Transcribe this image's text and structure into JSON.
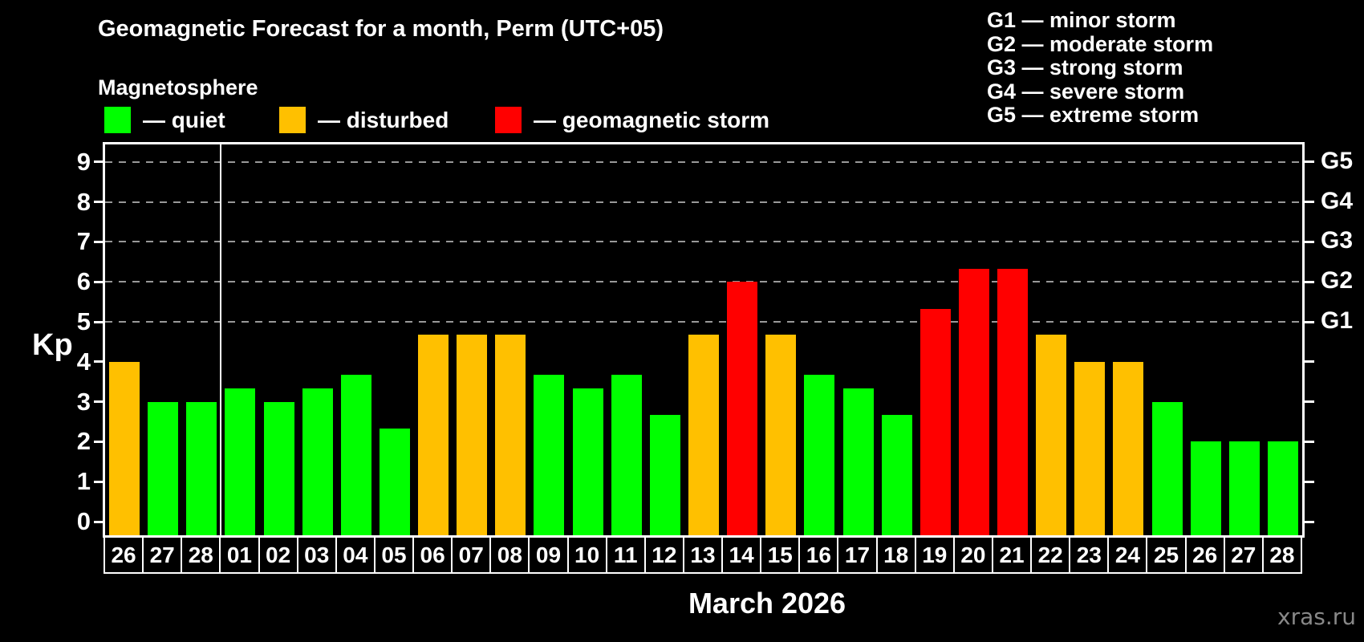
{
  "header": {
    "title": "Geomagnetic Forecast for a month, Perm (UTC+05)",
    "subtitle": "Magnetosphere"
  },
  "legend": {
    "items": [
      {
        "key": "quiet",
        "label": "— quiet",
        "color": "#00ff00"
      },
      {
        "key": "disturbed",
        "label": "— disturbed",
        "color": "#ffc000"
      },
      {
        "key": "storm",
        "label": "— geomagnetic storm",
        "color": "#ff0000"
      }
    ]
  },
  "storm_scale_legend": {
    "items": [
      {
        "label": "G1 — minor storm"
      },
      {
        "label": "G2 — moderate storm"
      },
      {
        "label": "G3 — strong storm"
      },
      {
        "label": "G4 — severe storm"
      },
      {
        "label": "G5 — extreme storm"
      }
    ]
  },
  "watermark": "xras.ru",
  "chart_data": {
    "type": "bar",
    "title": "Geomagnetic Forecast for a month, Perm (UTC+05)",
    "xlabel": "March 2026",
    "ylabel": "Kp",
    "ylim": [
      0,
      9
    ],
    "y_ticks": [
      0,
      1,
      2,
      3,
      4,
      5,
      6,
      7,
      8,
      9
    ],
    "gridlines_at": [
      5,
      6,
      7,
      8,
      9
    ],
    "grid": "dashed horizontal at Kp 5-9 only",
    "legend_position": "top-left",
    "right_axis_labels": [
      {
        "kp": 5,
        "label": "G1"
      },
      {
        "kp": 6,
        "label": "G2"
      },
      {
        "kp": 7,
        "label": "G3"
      },
      {
        "kp": 8,
        "label": "G4"
      },
      {
        "kp": 9,
        "label": "G5"
      }
    ],
    "categories": [
      "26",
      "27",
      "28",
      "01",
      "02",
      "03",
      "04",
      "05",
      "06",
      "07",
      "08",
      "09",
      "10",
      "11",
      "12",
      "13",
      "14",
      "15",
      "16",
      "17",
      "18",
      "19",
      "20",
      "21",
      "22",
      "23",
      "24",
      "25",
      "26",
      "27",
      "28"
    ],
    "values": [
      4.0,
      3.0,
      3.0,
      3.33,
      3.0,
      3.33,
      3.67,
      2.33,
      4.67,
      4.67,
      4.67,
      3.67,
      3.33,
      3.67,
      2.67,
      4.67,
      6.0,
      4.67,
      3.67,
      3.33,
      2.67,
      5.33,
      6.33,
      6.33,
      4.67,
      4.0,
      4.0,
      3.0,
      2.0,
      2.0,
      2.0
    ],
    "status": [
      "disturbed",
      "quiet",
      "quiet",
      "quiet",
      "quiet",
      "quiet",
      "quiet",
      "quiet",
      "disturbed",
      "disturbed",
      "disturbed",
      "quiet",
      "quiet",
      "quiet",
      "quiet",
      "disturbed",
      "storm",
      "disturbed",
      "quiet",
      "quiet",
      "quiet",
      "storm",
      "storm",
      "storm",
      "disturbed",
      "disturbed",
      "disturbed",
      "quiet",
      "quiet",
      "quiet",
      "quiet"
    ],
    "month_separator_after_index": 2,
    "colors": {
      "quiet": "#00ff00",
      "disturbed": "#ffc000",
      "storm": "#ff0000"
    }
  }
}
